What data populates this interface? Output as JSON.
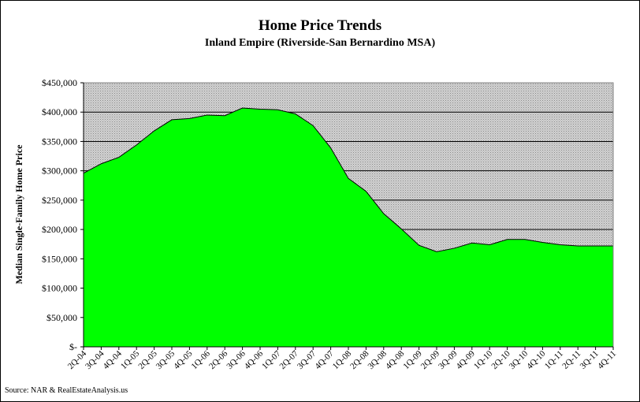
{
  "chart_data": {
    "type": "area",
    "title": "Home Price Trends",
    "subtitle": "Inland Empire (Riverside-San Bernardino MSA)",
    "ylabel": "Median Single-Family Home Price",
    "xlabel": "",
    "source": "Source: NAR & RealEstateAnalysis.us",
    "categories": [
      "2Q-04",
      "3Q-04",
      "4Q-04",
      "1Q-05",
      "2Q-05",
      "3Q-05",
      "4Q-05",
      "1Q-06",
      "2Q-06",
      "3Q-06",
      "4Q-06",
      "1Q-07",
      "2Q-07",
      "3Q-07",
      "4Q-07",
      "1Q-08",
      "2Q-08",
      "3Q-08",
      "4Q-08",
      "1Q-09",
      "2Q-09",
      "3Q-09",
      "4Q-09",
      "1Q-10",
      "2Q-10",
      "3Q-10",
      "4Q-10",
      "1Q-11",
      "2Q-11",
      "3Q-11",
      "4Q-11"
    ],
    "values": [
      296000,
      312000,
      323000,
      344000,
      368000,
      387000,
      389000,
      395000,
      394000,
      407000,
      405000,
      404000,
      397000,
      377000,
      339000,
      287000,
      265000,
      227000,
      201000,
      173000,
      162000,
      168000,
      177000,
      174000,
      183000,
      183000,
      178000,
      174000,
      172000,
      172000,
      172000
    ],
    "ylim": [
      0,
      450000
    ],
    "yticks": [
      0,
      50000,
      100000,
      150000,
      200000,
      250000,
      300000,
      350000,
      400000,
      450000
    ],
    "ytick_labels": [
      "$-",
      "$50,000",
      "$100,000",
      "$150,000",
      "$200,000",
      "$250,000",
      "$300,000",
      "$350,000",
      "$400,000",
      "$450,000"
    ],
    "grid": true,
    "legend": "none",
    "colors": {
      "area_fill": "#00ff00",
      "area_line": "#000000",
      "plot_background": "#c0c0c0",
      "gridline": "#000000"
    }
  }
}
